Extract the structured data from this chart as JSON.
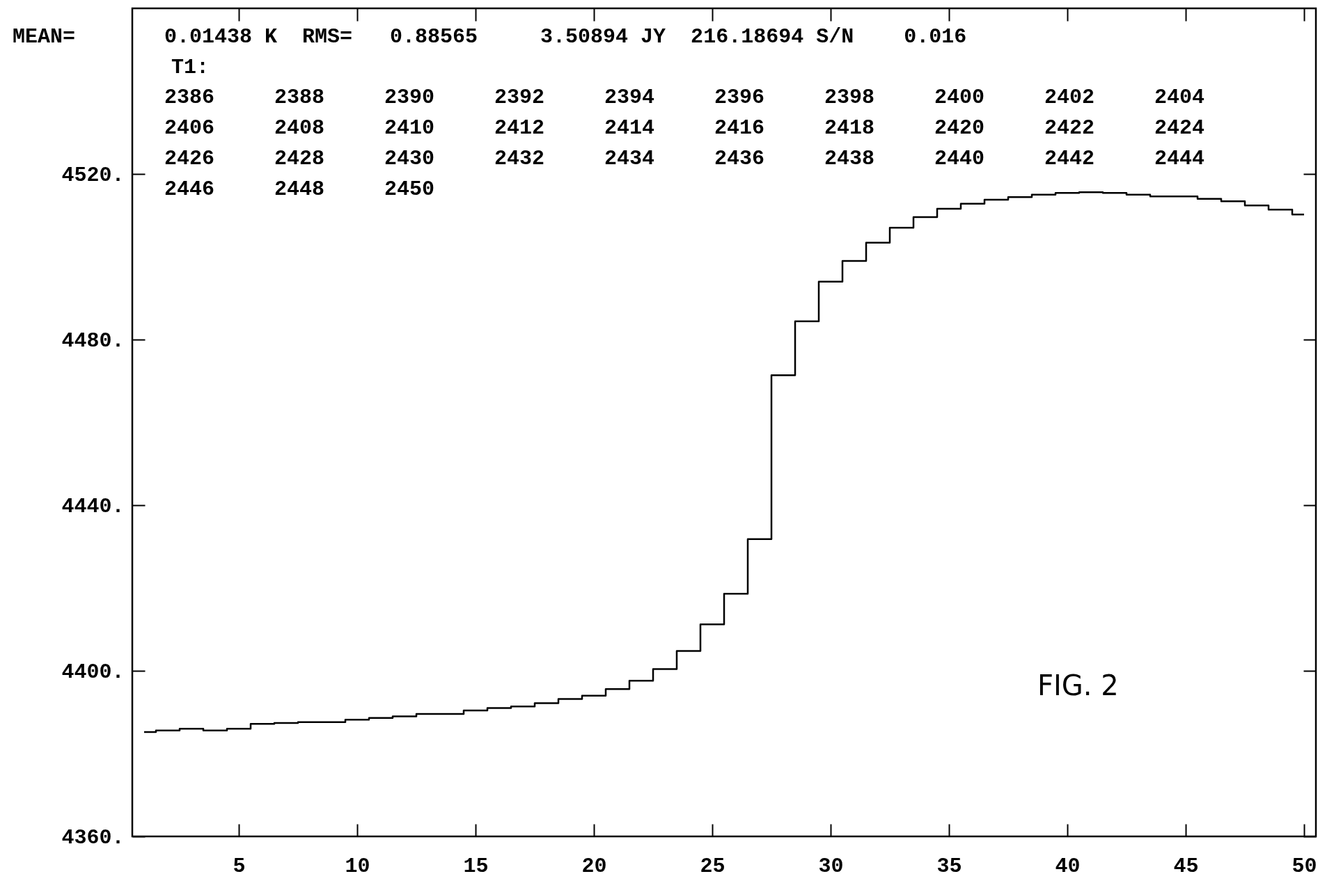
{
  "chart_data": {
    "type": "step",
    "x": [
      1,
      2,
      3,
      4,
      5,
      6,
      7,
      8,
      9,
      10,
      11,
      12,
      13,
      14,
      15,
      16,
      17,
      18,
      19,
      20,
      21,
      22,
      23,
      24,
      25,
      26,
      27,
      28,
      29,
      30,
      31,
      32,
      33,
      34,
      35,
      36,
      37,
      38,
      39,
      40,
      41,
      42,
      43,
      44,
      45,
      46,
      47,
      48,
      49,
      50
    ],
    "series": [
      {
        "color": "#000000",
        "values": [
          4385.2,
          4385.6,
          4386.0,
          4385.6,
          4386.0,
          4387.2,
          4387.4,
          4387.6,
          4387.6,
          4388.2,
          4388.6,
          4389.0,
          4389.6,
          4389.6,
          4390.4,
          4391.0,
          4391.4,
          4392.2,
          4393.2,
          4394.0,
          4395.6,
          4397.6,
          4400.4,
          4404.8,
          4411.2,
          4418.6,
          4431.8,
          4471.4,
          4484.4,
          4494.0,
          4499.0,
          4503.4,
          4507.0,
          4509.6,
          4511.6,
          4512.8,
          4513.8,
          4514.4,
          4515.0,
          4515.4,
          4515.6,
          4515.4,
          4515.0,
          4514.6,
          4514.6,
          4514.0,
          4513.4,
          4512.4,
          4511.4,
          4510.2
        ]
      }
    ],
    "xlim": [
      0.5,
      50.5
    ],
    "xticks": [
      5,
      10,
      15,
      20,
      25,
      30,
      35,
      40,
      45,
      50
    ],
    "ylim": [
      4360,
      4560
    ],
    "yticks": [
      {
        "value": 4360,
        "label": "4360."
      },
      {
        "value": 4400,
        "label": "4400."
      },
      {
        "value": 4440,
        "label": "4440."
      },
      {
        "value": 4480,
        "label": "4480."
      },
      {
        "value": 4520,
        "label": "4520."
      }
    ],
    "grid": false,
    "annotations": [
      "MEAN=",
      "0.01438 K  RMS=   0.88565     3.50894 JY  216.18694 S/N    0.016",
      "T1:",
      "2386 2388 2390 2392 2394 2396 2398 2400 2402 2404",
      "2406 2408 2410 2412 2414 2416 2418 2420 2422 2424",
      "2426 2428 2430 2432 2434 2436 2438 2440 2442 2444",
      "2446 2448 2450",
      "FIG. 2"
    ]
  }
}
